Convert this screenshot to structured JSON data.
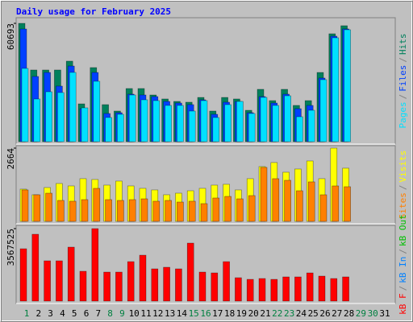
{
  "title": "Daily usage for February 2025",
  "legend_separator": "/",
  "chart_data": [
    {
      "type": "bar",
      "categories": [
        "1",
        "2",
        "3",
        "4",
        "5",
        "6",
        "7",
        "8",
        "9",
        "10",
        "11",
        "12",
        "13",
        "14",
        "15",
        "16",
        "17",
        "18",
        "19",
        "20",
        "21",
        "22",
        "23",
        "24",
        "25",
        "26",
        "27",
        "28",
        "29",
        "30",
        "31"
      ],
      "category_colors": [
        "#008040",
        "#000000",
        "#000000",
        "#000000",
        "#000000",
        "#000000",
        "#000000",
        "#008040",
        "#008040",
        "#000000",
        "#000000",
        "#000000",
        "#000000",
        "#000000",
        "#008040",
        "#008040",
        "#000000",
        "#000000",
        "#000000",
        "#000000",
        "#000000",
        "#008040",
        "#008040",
        "#000000",
        "#000000",
        "#000000",
        "#000000",
        "#000000",
        "#008040",
        "#008040",
        "#000000"
      ],
      "ylim": [
        0,
        60693
      ],
      "yticks": [
        60693
      ],
      "series": [
        {
          "name": "Hits",
          "color": "#00805C",
          "values": [
            60693,
            36760,
            36760,
            36760,
            41300,
            19400,
            38000,
            19000,
            15700,
            27260,
            27260,
            23950,
            21900,
            20650,
            20240,
            22700,
            15700,
            22700,
            21900,
            16100,
            26850,
            21060,
            26850,
            18600,
            21060,
            35500,
            55340,
            59470,
            null,
            null,
            null
          ]
        },
        {
          "name": "Files",
          "color": "#0040FF",
          "values": [
            57800,
            33450,
            35500,
            28500,
            38800,
            16900,
            35500,
            14450,
            14870,
            24370,
            23950,
            23130,
            20650,
            19820,
            19000,
            21480,
            14040,
            20240,
            20650,
            14870,
            23130,
            19820,
            24370,
            16930,
            18590,
            32630,
            54100,
            57820,
            null,
            null,
            null
          ]
        },
        {
          "name": "Pages",
          "color": "#00E0FF",
          "values": [
            37580,
            21890,
            25600,
            25190,
            35520,
            17350,
            30980,
            12400,
            14040,
            23950,
            21480,
            21060,
            18590,
            18590,
            15700,
            21060,
            12390,
            19000,
            20650,
            14460,
            22720,
            18590,
            23540,
            12800,
            16100,
            31800,
            53280,
            57410,
            null,
            null,
            null
          ]
        }
      ]
    },
    {
      "type": "bar",
      "ylim": [
        0,
        2664
      ],
      "yticks": [
        2664
      ],
      "series": [
        {
          "name": "Visits",
          "color": "#FFFF00",
          "values": [
            1172,
            967,
            1230,
            1377,
            1289,
            1553,
            1523,
            1318,
            1465,
            1289,
            1201,
            1143,
            967,
            1025,
            1113,
            1201,
            1318,
            1348,
            1143,
            1553,
            1992,
            2139,
            1787,
            1904,
            2197,
            1553,
            2664,
            1934,
            null,
            null,
            null
          ]
        },
        {
          "name": "Sites",
          "color": "#FF8000",
          "values": [
            1143,
            967,
            1025,
            762,
            733,
            791,
            1201,
            791,
            762,
            791,
            820,
            733,
            762,
            703,
            733,
            645,
            850,
            908,
            820,
            938,
            1963,
            1553,
            1494,
            1113,
            1436,
            967,
            1289,
            1260,
            null,
            null,
            null
          ]
        }
      ]
    },
    {
      "type": "bar",
      "ylim": [
        0,
        3567525
      ],
      "yticks": [
        3567525
      ],
      "legend": [
        {
          "name": "kB F",
          "color": "#FF0000"
        },
        {
          "name": "kB In",
          "color": "#0080FF"
        },
        {
          "name": "kB Out",
          "color": "#00C000"
        }
      ],
      "series": [
        {
          "name": "kB F",
          "color": "#FF0000",
          "values": [
            2576000,
            3290000,
            1982000,
            1982000,
            2656000,
            1467000,
            3567525,
            1427000,
            1427000,
            1942000,
            2259000,
            1586000,
            1665000,
            1586000,
            2854000,
            1427000,
            1387000,
            1942000,
            1150000,
            1070000,
            1110000,
            1070000,
            1190000,
            1190000,
            1387000,
            1229000,
            1110000,
            1190000,
            null,
            null,
            null
          ]
        }
      ]
    }
  ]
}
